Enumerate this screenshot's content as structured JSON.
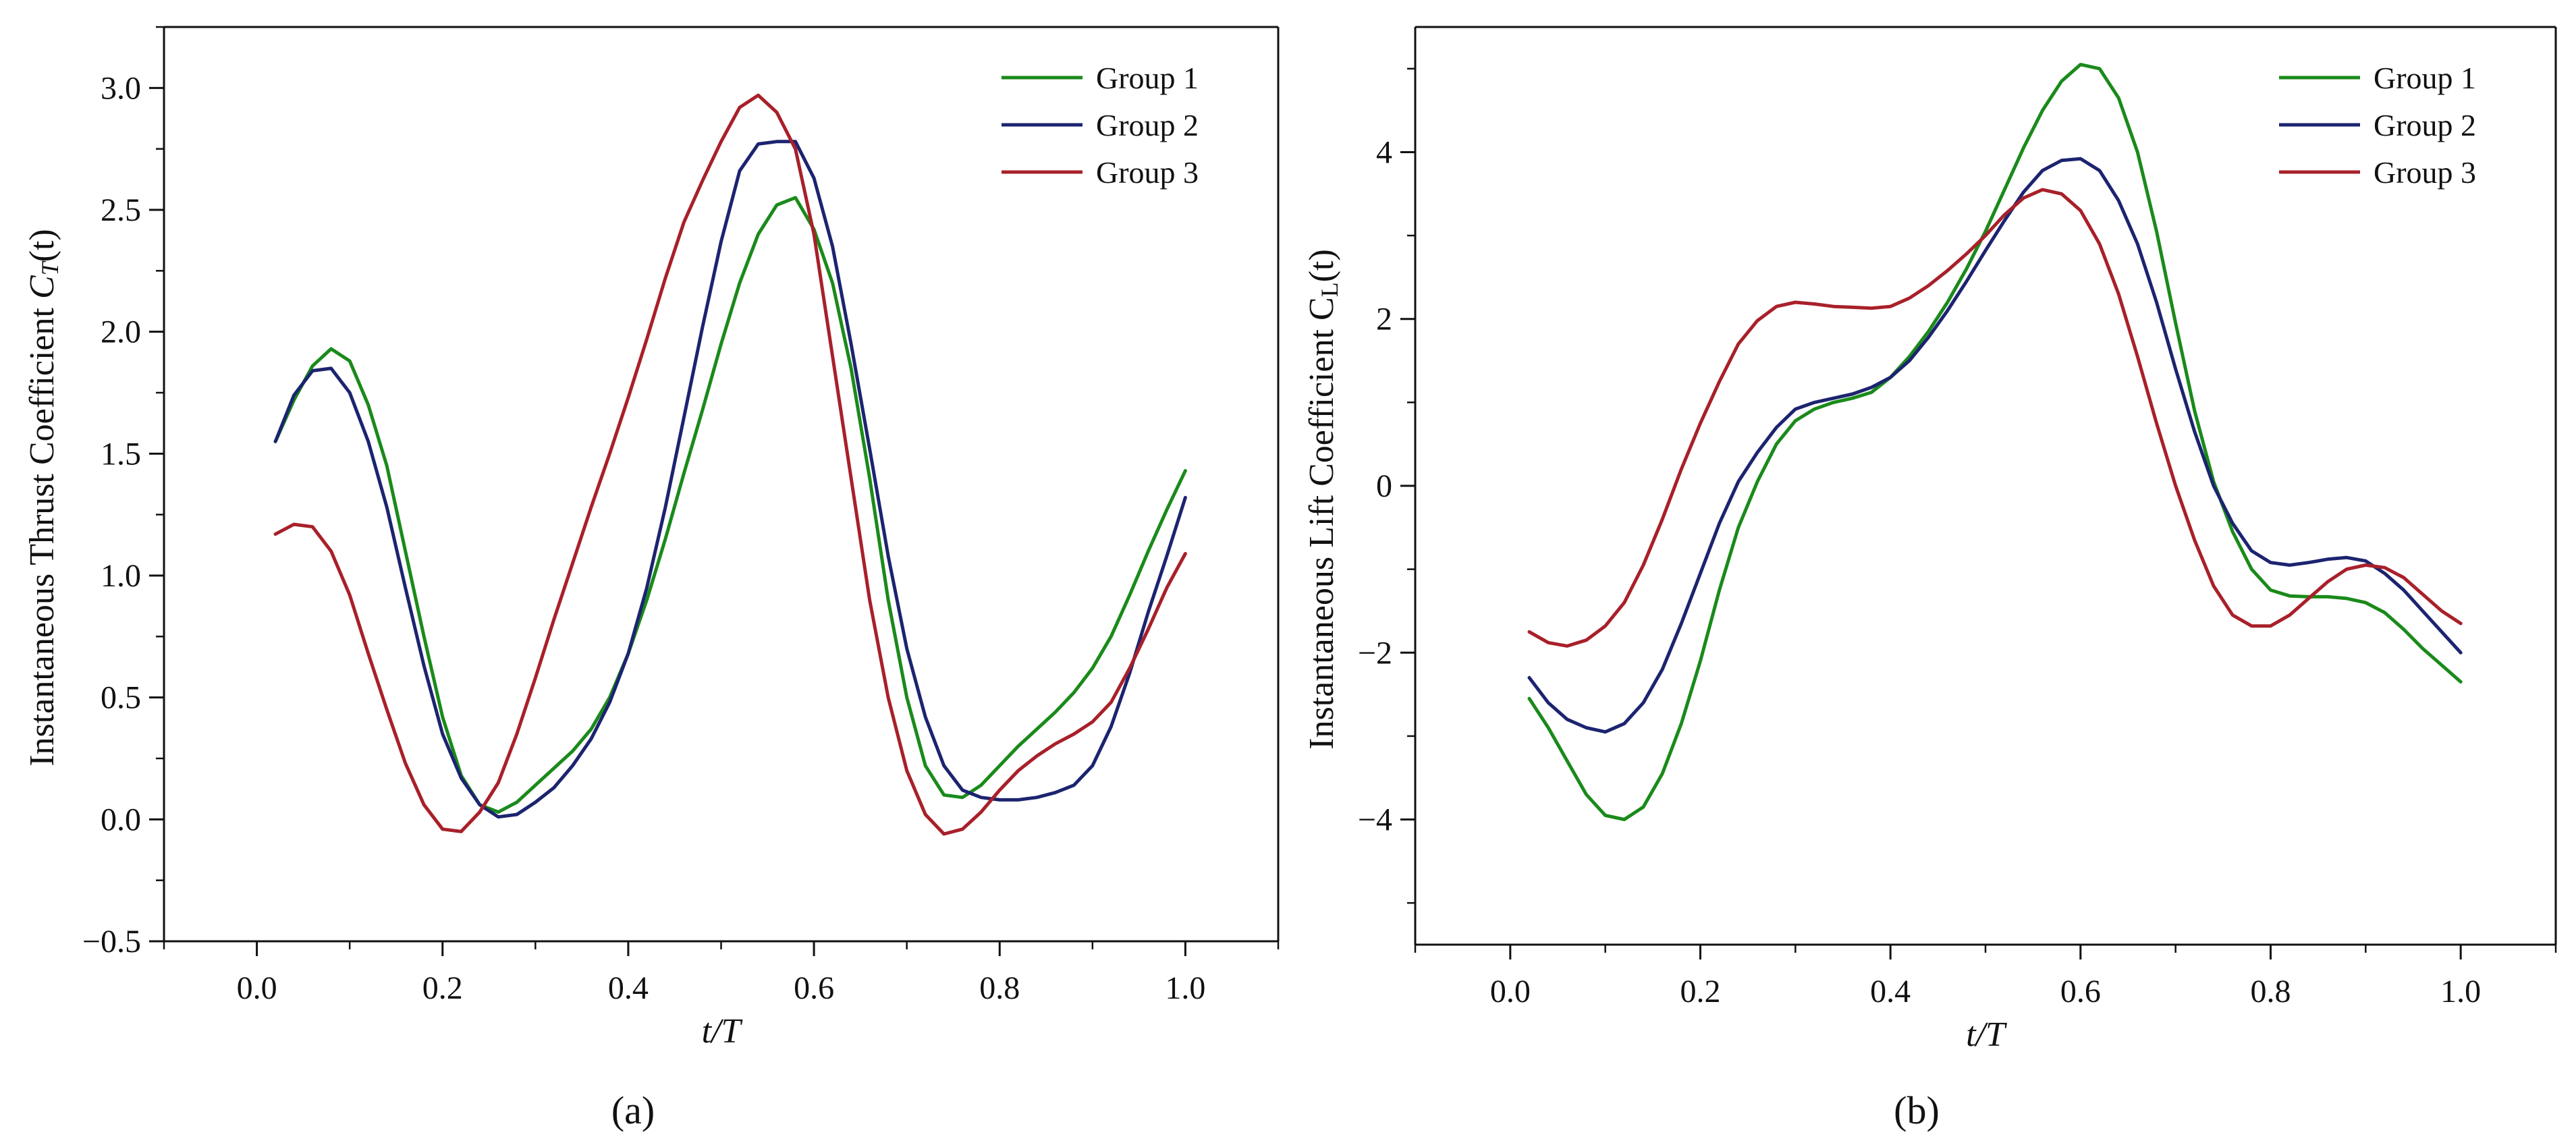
{
  "chart_data": [
    {
      "type": "line",
      "panel_label": "(a)",
      "xlabel": "t/T",
      "ylabel": "Instantaneous Thrust Coefficient C_T(t)",
      "ylabel_main": "Instantaneous Thrust Coefficient ",
      "ylabel_symbol": "C",
      "ylabel_sub": "T",
      "ylabel_tail": "(t)",
      "xlim": [
        -0.1,
        1.1
      ],
      "ylim": [
        -0.5,
        3.25
      ],
      "xticks": [
        0.0,
        0.2,
        0.4,
        0.6,
        0.8,
        1.0
      ],
      "xtick_labels": [
        "0.0",
        "0.2",
        "0.4",
        "0.6",
        "0.8",
        "1.0"
      ],
      "yticks": [
        -0.5,
        0.0,
        0.5,
        1.0,
        1.5,
        2.0,
        2.5,
        3.0
      ],
      "ytick_labels": [
        "−0.5",
        "0.0",
        "0.5",
        "1.0",
        "1.5",
        "2.0",
        "2.5",
        "3.0"
      ],
      "legend_position": "top-right",
      "series": [
        {
          "name": "Group 1",
          "color": "#1a8a1a",
          "x": [
            0.02,
            0.04,
            0.06,
            0.08,
            0.1,
            0.12,
            0.14,
            0.16,
            0.18,
            0.2,
            0.22,
            0.24,
            0.26,
            0.28,
            0.3,
            0.32,
            0.34,
            0.36,
            0.38,
            0.4,
            0.42,
            0.44,
            0.46,
            0.48,
            0.5,
            0.52,
            0.54,
            0.56,
            0.58,
            0.6,
            0.62,
            0.64,
            0.66,
            0.68,
            0.7,
            0.72,
            0.74,
            0.76,
            0.78,
            0.8,
            0.82,
            0.84,
            0.86,
            0.88,
            0.9,
            0.92,
            0.94,
            0.96,
            0.98,
            1.0
          ],
          "y": [
            1.55,
            1.72,
            1.86,
            1.93,
            1.88,
            1.7,
            1.45,
            1.1,
            0.75,
            0.42,
            0.18,
            0.06,
            0.03,
            0.07,
            0.14,
            0.21,
            0.28,
            0.37,
            0.5,
            0.68,
            0.9,
            1.15,
            1.42,
            1.68,
            1.95,
            2.2,
            2.4,
            2.52,
            2.55,
            2.42,
            2.2,
            1.85,
            1.4,
            0.9,
            0.5,
            0.22,
            0.1,
            0.09,
            0.14,
            0.22,
            0.3,
            0.37,
            0.44,
            0.52,
            0.62,
            0.75,
            0.92,
            1.1,
            1.27,
            1.43
          ]
        },
        {
          "name": "Group 2",
          "color": "#1c2470",
          "x": [
            0.02,
            0.04,
            0.06,
            0.08,
            0.1,
            0.12,
            0.14,
            0.16,
            0.18,
            0.2,
            0.22,
            0.24,
            0.26,
            0.28,
            0.3,
            0.32,
            0.34,
            0.36,
            0.38,
            0.4,
            0.42,
            0.44,
            0.46,
            0.48,
            0.5,
            0.52,
            0.54,
            0.56,
            0.58,
            0.6,
            0.62,
            0.64,
            0.66,
            0.68,
            0.7,
            0.72,
            0.74,
            0.76,
            0.78,
            0.8,
            0.82,
            0.84,
            0.86,
            0.88,
            0.9,
            0.92,
            0.94,
            0.96,
            0.98,
            1.0
          ],
          "y": [
            1.55,
            1.74,
            1.84,
            1.85,
            1.75,
            1.55,
            1.28,
            0.95,
            0.63,
            0.35,
            0.17,
            0.06,
            0.01,
            0.02,
            0.07,
            0.13,
            0.22,
            0.33,
            0.48,
            0.68,
            0.95,
            1.28,
            1.65,
            2.02,
            2.37,
            2.66,
            2.77,
            2.78,
            2.78,
            2.63,
            2.35,
            1.95,
            1.52,
            1.08,
            0.7,
            0.42,
            0.22,
            0.12,
            0.09,
            0.08,
            0.08,
            0.09,
            0.11,
            0.14,
            0.22,
            0.38,
            0.6,
            0.85,
            1.08,
            1.32
          ]
        },
        {
          "name": "Group 3",
          "color": "#a8202a",
          "x": [
            0.02,
            0.04,
            0.06,
            0.08,
            0.1,
            0.12,
            0.14,
            0.16,
            0.18,
            0.2,
            0.22,
            0.24,
            0.26,
            0.28,
            0.3,
            0.32,
            0.34,
            0.36,
            0.38,
            0.4,
            0.42,
            0.44,
            0.46,
            0.48,
            0.5,
            0.52,
            0.54,
            0.56,
            0.58,
            0.6,
            0.62,
            0.64,
            0.66,
            0.68,
            0.7,
            0.72,
            0.74,
            0.76,
            0.78,
            0.8,
            0.82,
            0.84,
            0.86,
            0.88,
            0.9,
            0.92,
            0.94,
            0.96,
            0.98,
            1.0
          ],
          "y": [
            1.17,
            1.21,
            1.2,
            1.1,
            0.92,
            0.68,
            0.45,
            0.23,
            0.06,
            -0.04,
            -0.05,
            0.03,
            0.15,
            0.35,
            0.58,
            0.82,
            1.05,
            1.28,
            1.5,
            1.73,
            1.97,
            2.22,
            2.45,
            2.62,
            2.78,
            2.92,
            2.97,
            2.9,
            2.75,
            2.4,
            1.9,
            1.4,
            0.9,
            0.5,
            0.2,
            0.02,
            -0.06,
            -0.04,
            0.03,
            0.12,
            0.2,
            0.26,
            0.31,
            0.35,
            0.4,
            0.48,
            0.62,
            0.78,
            0.95,
            1.09
          ]
        }
      ]
    },
    {
      "type": "line",
      "panel_label": "(b)",
      "xlabel": "t/T",
      "ylabel": "Instantaneous Lift Coefficient C_L(t)",
      "ylabel_main": "Instantaneous Lift Coefficient ",
      "ylabel_symbol": "C",
      "ylabel_sub": "L",
      "ylabel_tail": "(t)",
      "xlim": [
        -0.1,
        1.1
      ],
      "ylim": [
        -5.5,
        5.5
      ],
      "xticks": [
        0.0,
        0.2,
        0.4,
        0.6,
        0.8,
        1.0
      ],
      "xtick_labels": [
        "0.0",
        "0.2",
        "0.4",
        "0.6",
        "0.8",
        "1.0"
      ],
      "yticks": [
        -4,
        -2,
        0,
        2,
        4
      ],
      "ytick_labels": [
        "−4",
        "−2",
        "0",
        "2",
        "4"
      ],
      "legend_position": "top-right",
      "series": [
        {
          "name": "Group 1",
          "color": "#1a8a1a",
          "x": [
            0.02,
            0.04,
            0.06,
            0.08,
            0.1,
            0.12,
            0.14,
            0.16,
            0.18,
            0.2,
            0.22,
            0.24,
            0.26,
            0.28,
            0.3,
            0.32,
            0.34,
            0.36,
            0.38,
            0.4,
            0.42,
            0.44,
            0.46,
            0.48,
            0.5,
            0.52,
            0.54,
            0.56,
            0.58,
            0.6,
            0.62,
            0.64,
            0.66,
            0.68,
            0.7,
            0.72,
            0.74,
            0.76,
            0.78,
            0.8,
            0.82,
            0.84,
            0.86,
            0.88,
            0.9,
            0.92,
            0.94,
            0.96,
            0.98,
            1.0
          ],
          "y": [
            -2.55,
            -2.9,
            -3.3,
            -3.7,
            -3.95,
            -4.0,
            -3.85,
            -3.45,
            -2.85,
            -2.1,
            -1.25,
            -0.5,
            0.05,
            0.5,
            0.78,
            0.92,
            1.0,
            1.05,
            1.12,
            1.3,
            1.55,
            1.85,
            2.2,
            2.6,
            3.05,
            3.55,
            4.05,
            4.5,
            4.85,
            5.05,
            5.0,
            4.65,
            4.0,
            3.05,
            1.95,
            0.9,
            0.05,
            -0.55,
            -1.0,
            -1.25,
            -1.32,
            -1.33,
            -1.33,
            -1.35,
            -1.4,
            -1.52,
            -1.72,
            -1.95,
            -2.15,
            -2.35
          ]
        },
        {
          "name": "Group 2",
          "color": "#1c2470",
          "x": [
            0.02,
            0.04,
            0.06,
            0.08,
            0.1,
            0.12,
            0.14,
            0.16,
            0.18,
            0.2,
            0.22,
            0.24,
            0.26,
            0.28,
            0.3,
            0.32,
            0.34,
            0.36,
            0.38,
            0.4,
            0.42,
            0.44,
            0.46,
            0.48,
            0.5,
            0.52,
            0.54,
            0.56,
            0.58,
            0.6,
            0.62,
            0.64,
            0.66,
            0.68,
            0.7,
            0.72,
            0.74,
            0.76,
            0.78,
            0.8,
            0.82,
            0.84,
            0.86,
            0.88,
            0.9,
            0.92,
            0.94,
            0.96,
            0.98,
            1.0
          ],
          "y": [
            -2.3,
            -2.6,
            -2.8,
            -2.9,
            -2.95,
            -2.85,
            -2.6,
            -2.2,
            -1.65,
            -1.05,
            -0.45,
            0.05,
            0.4,
            0.7,
            0.92,
            1.0,
            1.05,
            1.1,
            1.18,
            1.3,
            1.5,
            1.78,
            2.1,
            2.45,
            2.82,
            3.18,
            3.52,
            3.78,
            3.9,
            3.92,
            3.78,
            3.42,
            2.9,
            2.2,
            1.4,
            0.65,
            0.0,
            -0.45,
            -0.78,
            -0.92,
            -0.95,
            -0.92,
            -0.88,
            -0.86,
            -0.9,
            -1.05,
            -1.25,
            -1.5,
            -1.75,
            -2.0
          ]
        },
        {
          "name": "Group 3",
          "color": "#a8202a",
          "x": [
            0.02,
            0.04,
            0.06,
            0.08,
            0.1,
            0.12,
            0.14,
            0.16,
            0.18,
            0.2,
            0.22,
            0.24,
            0.26,
            0.28,
            0.3,
            0.32,
            0.34,
            0.36,
            0.38,
            0.4,
            0.42,
            0.44,
            0.46,
            0.48,
            0.5,
            0.52,
            0.54,
            0.56,
            0.58,
            0.6,
            0.62,
            0.64,
            0.66,
            0.68,
            0.7,
            0.72,
            0.74,
            0.76,
            0.78,
            0.8,
            0.82,
            0.84,
            0.86,
            0.88,
            0.9,
            0.92,
            0.94,
            0.96,
            0.98,
            1.0
          ],
          "y": [
            -1.75,
            -1.88,
            -1.92,
            -1.85,
            -1.68,
            -1.4,
            -0.95,
            -0.4,
            0.2,
            0.75,
            1.25,
            1.7,
            1.98,
            2.15,
            2.2,
            2.18,
            2.15,
            2.14,
            2.13,
            2.15,
            2.25,
            2.4,
            2.58,
            2.78,
            3.0,
            3.25,
            3.45,
            3.55,
            3.5,
            3.3,
            2.9,
            2.3,
            1.55,
            0.75,
            0.0,
            -0.65,
            -1.2,
            -1.55,
            -1.68,
            -1.68,
            -1.55,
            -1.35,
            -1.15,
            -1.0,
            -0.95,
            -0.98,
            -1.1,
            -1.3,
            -1.5,
            -1.65
          ]
        }
      ]
    }
  ]
}
